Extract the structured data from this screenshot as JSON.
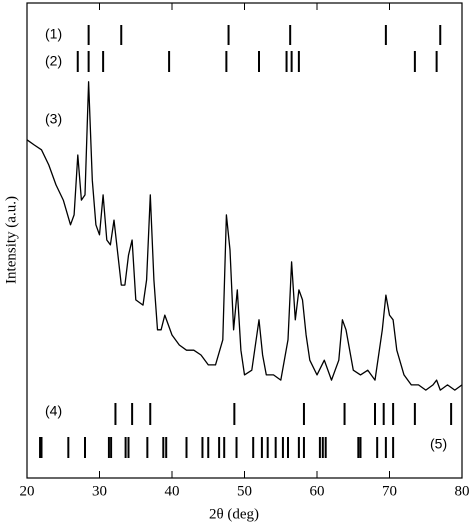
{
  "chart_data": {
    "type": "line",
    "xlabel": "2θ (deg)",
    "ylabel": "Intensity (a.u.)",
    "xlim": [
      20,
      80
    ],
    "xticks": [
      20,
      30,
      40,
      50,
      60,
      70,
      80
    ],
    "ylim": [
      0,
      100
    ],
    "series": [
      {
        "name": "(3)",
        "color": "#000000",
        "x": [
          20,
          21,
          22,
          23,
          24,
          25,
          26,
          26.5,
          27,
          27.5,
          28,
          28.5,
          29,
          29.5,
          30,
          30.5,
          31,
          31.5,
          32,
          33,
          33.5,
          34,
          34.5,
          35,
          36,
          36.5,
          37,
          37.5,
          38,
          38.5,
          39,
          40,
          41,
          42,
          43,
          44,
          45,
          46,
          47,
          47.5,
          48,
          48.5,
          49,
          49.5,
          50,
          51,
          52,
          52.5,
          53,
          54,
          55,
          56,
          56.5,
          57,
          57.5,
          58,
          58.5,
          59,
          60,
          61,
          62,
          63,
          63.5,
          64,
          65,
          66,
          67,
          68,
          69,
          69.5,
          70,
          70.5,
          71,
          72,
          73,
          74,
          75,
          76,
          76.5,
          77,
          78,
          79,
          80
        ],
        "values": [
          71.2,
          70.1,
          69.1,
          65.9,
          61.7,
          58.5,
          53.3,
          55.4,
          68.0,
          58.5,
          59.6,
          83.4,
          62.7,
          53.3,
          51.2,
          59.6,
          50.1,
          49.1,
          54.3,
          40.6,
          40.6,
          46.9,
          50.1,
          37.5,
          36.4,
          41.7,
          59.6,
          41.7,
          31.2,
          31.2,
          34.3,
          30.1,
          28.0,
          26.9,
          26.9,
          25.9,
          23.8,
          23.8,
          29.1,
          55.4,
          48.0,
          31.2,
          39.6,
          26.9,
          21.7,
          22.7,
          33.3,
          25.9,
          21.7,
          21.7,
          20.6,
          29.1,
          45.5,
          33.3,
          39.6,
          37.5,
          30.1,
          24.8,
          21.7,
          24.8,
          20.6,
          24.8,
          33.3,
          31.2,
          22.7,
          21.7,
          22.7,
          20.6,
          31.2,
          38.5,
          34.3,
          33.3,
          26.9,
          21.7,
          19.6,
          19.6,
          18.5,
          19.6,
          20.6,
          18.5,
          19.6,
          18.5,
          19.6
        ]
      }
    ],
    "reference_patterns": [
      {
        "name": "(1)",
        "positions": [
          28.5,
          33,
          47.8,
          56.3,
          69.5,
          77
        ]
      },
      {
        "name": "(2)",
        "positions": [
          27,
          28.5,
          30.5,
          39.6,
          47.5,
          52,
          55.8,
          56.5,
          57.5,
          73.5,
          76.5
        ]
      },
      {
        "name": "(4)",
        "positions": [
          32.2,
          34.5,
          37,
          48.6,
          58.2,
          63.8,
          68,
          69.2,
          70.5,
          73.5,
          78.5
        ]
      },
      {
        "name": "(5)",
        "positions": [
          21.8,
          22,
          25.7,
          28,
          31.3,
          31.6,
          33.6,
          34,
          36.6,
          38.8,
          39.2,
          42,
          44.2,
          45,
          46.5,
          47.2,
          48.9,
          51.2,
          52.4,
          53.2,
          54.3,
          55.3,
          56,
          57.5,
          58.2,
          60.4,
          60.8,
          61.2,
          65.7,
          66,
          68.3,
          69.5,
          70.5
        ]
      }
    ]
  }
}
